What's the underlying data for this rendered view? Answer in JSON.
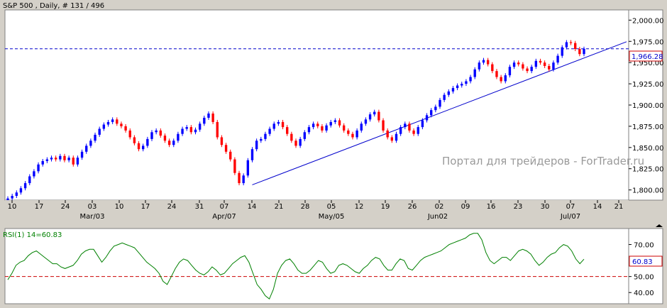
{
  "chart_title": "S&P 500 , Daily, # 131 / 496",
  "watermark": "Портал для трейдеров - ForTrader.ru",
  "price_panel": {
    "y_ticks": [
      "1,800.00",
      "1,825.00",
      "1,850.00",
      "1,875.00",
      "1,900.00",
      "1,925.00",
      "1,950.00",
      "1,975.00",
      "2,000.00"
    ],
    "last_price_label": "1,966.28",
    "last_price": 1966.28
  },
  "x_axis": {
    "day_labels": [
      "10",
      "17",
      "24",
      "03",
      "10",
      "17",
      "24",
      "31",
      "07",
      "14",
      "21",
      "28",
      "05",
      "12",
      "19",
      "26",
      "02",
      "09",
      "16",
      "23",
      "30",
      "07",
      "14",
      "21"
    ],
    "month_labels": [
      "Mar/03",
      "Apr/07",
      "May/05",
      "Jun02",
      "Jul/07"
    ]
  },
  "rsi_panel": {
    "label": "RSI(1) 14=60.83",
    "y_ticks": [
      "40.00",
      "50.00",
      "70.00"
    ],
    "value_label": "60.83",
    "value": 60.83,
    "threshold": 50
  },
  "colors": {
    "background": "#ffffff",
    "frame": "#d4d0c8",
    "bull_candle": "#0000ff",
    "bear_candle": "#ff0000",
    "trendline": "#0000cc",
    "price_line": "#0000cc",
    "rsi_line": "#008000",
    "rsi_threshold": "#cc0000"
  },
  "chart_data": [
    {
      "type": "candlestick",
      "title": "S&P 500 , Daily, # 131 / 496",
      "ylim": [
        1788,
        2012
      ],
      "x_categories": [
        "10",
        "17",
        "24",
        "03",
        "10",
        "17",
        "24",
        "31",
        "07",
        "14",
        "21",
        "28",
        "05",
        "12",
        "19",
        "26",
        "02",
        "09",
        "16",
        "23",
        "30",
        "07",
        "14",
        "21"
      ],
      "close_series": [
        1790,
        1793,
        1797,
        1802,
        1808,
        1816,
        1822,
        1830,
        1834,
        1836,
        1838,
        1836,
        1840,
        1835,
        1838,
        1830,
        1838,
        1845,
        1852,
        1858,
        1865,
        1872,
        1877,
        1880,
        1883,
        1878,
        1875,
        1870,
        1862,
        1855,
        1848,
        1852,
        1860,
        1868,
        1870,
        1864,
        1858,
        1853,
        1858,
        1866,
        1872,
        1874,
        1868,
        1871,
        1878,
        1885,
        1890,
        1880,
        1862,
        1853,
        1845,
        1836,
        1820,
        1808,
        1817,
        1835,
        1848,
        1858,
        1860,
        1866,
        1872,
        1878,
        1880,
        1874,
        1866,
        1858,
        1852,
        1860,
        1868,
        1874,
        1878,
        1875,
        1870,
        1876,
        1880,
        1882,
        1876,
        1870,
        1866,
        1862,
        1870,
        1878,
        1883,
        1889,
        1892,
        1882,
        1870,
        1862,
        1858,
        1866,
        1874,
        1878,
        1870,
        1866,
        1874,
        1882,
        1888,
        1894,
        1898,
        1906,
        1912,
        1916,
        1920,
        1923,
        1925,
        1928,
        1933,
        1942,
        1950,
        1953,
        1948,
        1940,
        1933,
        1928,
        1935,
        1945,
        1950,
        1948,
        1943,
        1940,
        1945,
        1952,
        1950,
        1946,
        1942,
        1950,
        1958,
        1968,
        1974,
        1973,
        1966,
        1960,
        1966.28
      ],
      "trendline": {
        "from_index": 56,
        "from_value": 1806,
        "to_index": 143,
        "to_value": 1977
      },
      "current_price": 1966.28
    },
    {
      "type": "line",
      "title": "RSI(1) 14=60.83",
      "ylim": [
        33,
        80
      ],
      "values": [
        48,
        52,
        57,
        59,
        60,
        63,
        65,
        66,
        64,
        62,
        60,
        58,
        58,
        56,
        55,
        56,
        57,
        60,
        64,
        66,
        67,
        67,
        63,
        59,
        62,
        66,
        69,
        70,
        71,
        70,
        69,
        68,
        65,
        62,
        59,
        57,
        55,
        52,
        47,
        45,
        50,
        55,
        59,
        61,
        60,
        57,
        54,
        52,
        51,
        53,
        56,
        54,
        51,
        52,
        55,
        58,
        60,
        62,
        63,
        59,
        52,
        45,
        42,
        38,
        36,
        42,
        52,
        57,
        60,
        61,
        58,
        54,
        52,
        52,
        54,
        57,
        60,
        59,
        55,
        52,
        53,
        57,
        58,
        57,
        55,
        53,
        52,
        55,
        57,
        60,
        62,
        61,
        57,
        54,
        54,
        58,
        61,
        60,
        55,
        54,
        57,
        60,
        62,
        63,
        64,
        65,
        66,
        68,
        70,
        71,
        72,
        73,
        74,
        76,
        77,
        77,
        73,
        65,
        60,
        58,
        60,
        62,
        62,
        60,
        63,
        66,
        67,
        66,
        64,
        60,
        57,
        59,
        62,
        64,
        65,
        68,
        70,
        69,
        66,
        61,
        58,
        60.83
      ],
      "threshold": 50
    }
  ]
}
